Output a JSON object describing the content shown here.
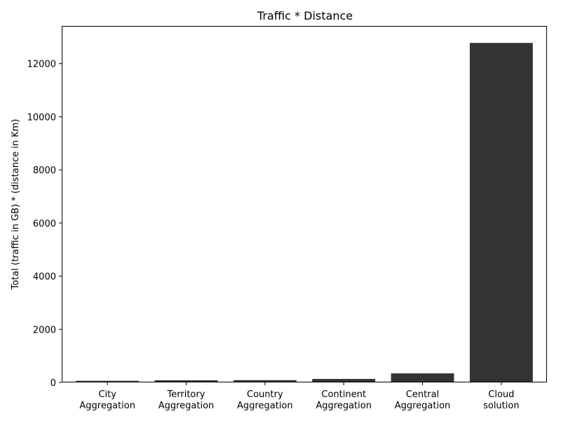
{
  "chart_data": {
    "type": "bar",
    "title": "Traffic * Distance",
    "xlabel": "",
    "ylabel": "Total (traffic in GB) * (distance in Km)",
    "categories": [
      [
        "City",
        "Aggregation"
      ],
      [
        "Territory",
        "Aggregation"
      ],
      [
        "Country",
        "Aggregation"
      ],
      [
        "Continent",
        "Aggregation"
      ],
      [
        "Central",
        "Aggregation"
      ],
      [
        "Cloud",
        "solution"
      ]
    ],
    "values": [
      60,
      80,
      85,
      130,
      340,
      12780
    ],
    "yticks": [
      0,
      2000,
      4000,
      6000,
      8000,
      10000,
      12000
    ],
    "ylim": [
      0,
      13419
    ],
    "bar_color": "#333333",
    "grid": false,
    "legend": "none"
  }
}
